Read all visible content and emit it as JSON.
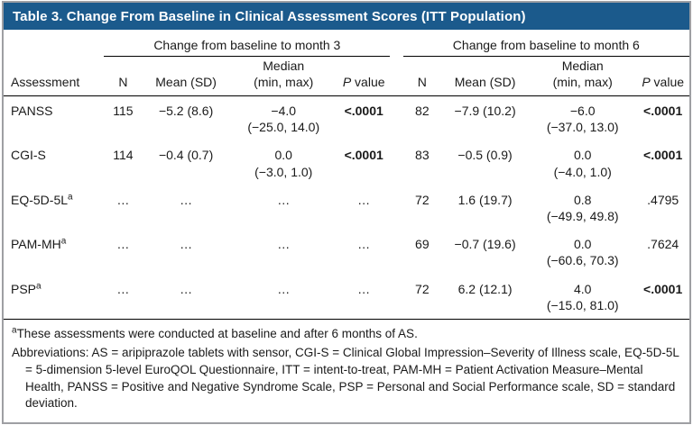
{
  "title": "Table 3. Change From Baseline in Clinical Assessment Scores (ITT Population)",
  "colors": {
    "header_bg": "#1b5a8c",
    "border_gray": "#9e9fa3",
    "rule_black": "#000000"
  },
  "table": {
    "group_headers": [
      "Change from baseline to month 3",
      "Change from baseline to month 6"
    ],
    "headers": {
      "assessment": "Assessment",
      "n": "N",
      "mean": "Mean (SD)",
      "median_line1": "Median",
      "median_line2": "(min, max)",
      "p_italic": "P",
      "p_rest": " value"
    },
    "rows": [
      {
        "assessment": "PANSS",
        "sup": "",
        "m3": {
          "n": "115",
          "mean_sd": "−5.2 (8.6)",
          "median": "−4.0",
          "minmax": "(−25.0, 14.0)",
          "p": "<.0001",
          "p_bold": true
        },
        "m6": {
          "n": "82",
          "mean_sd": "−7.9 (10.2)",
          "median": "−6.0",
          "minmax": "(−37.0, 13.0)",
          "p": "<.0001",
          "p_bold": true
        }
      },
      {
        "assessment": "CGI-S",
        "sup": "",
        "m3": {
          "n": "114",
          "mean_sd": "−0.4 (0.7)",
          "median": "0.0",
          "minmax": "(−3.0, 1.0)",
          "p": "<.0001",
          "p_bold": true
        },
        "m6": {
          "n": "83",
          "mean_sd": "−0.5 (0.9)",
          "median": "0.0",
          "minmax": "(−4.0, 1.0)",
          "p": "<.0001",
          "p_bold": true
        }
      },
      {
        "assessment": "EQ-5D-5L",
        "sup": "a",
        "m3": {
          "n": "…",
          "mean_sd": "…",
          "median": "…",
          "minmax": "",
          "p": "…",
          "p_bold": false
        },
        "m6": {
          "n": "72",
          "mean_sd": "1.6 (19.7)",
          "median": "0.8",
          "minmax": "(−49.9, 49.8)",
          "p": ".4795",
          "p_bold": false
        }
      },
      {
        "assessment": "PAM-MH",
        "sup": "a",
        "m3": {
          "n": "…",
          "mean_sd": "…",
          "median": "…",
          "minmax": "",
          "p": "…",
          "p_bold": false
        },
        "m6": {
          "n": "69",
          "mean_sd": "−0.7 (19.6)",
          "median": "0.0",
          "minmax": "(−60.6, 70.3)",
          "p": ".7624",
          "p_bold": false
        }
      },
      {
        "assessment": "PSP",
        "sup": "a",
        "m3": {
          "n": "…",
          "mean_sd": "…",
          "median": "…",
          "minmax": "",
          "p": "…",
          "p_bold": false
        },
        "m6": {
          "n": "72",
          "mean_sd": "6.2 (12.1)",
          "median": "4.0",
          "minmax": "(−15.0, 81.0)",
          "p": "<.0001",
          "p_bold": true
        }
      }
    ]
  },
  "footnotes": {
    "note1_sup": "a",
    "note1_text": "These assessments were conducted at baseline and after 6 months of AS.",
    "abbreviations": "Abbreviations: AS = aripiprazole tablets with sensor, CGI-S = Clinical Global Impression–Severity of Illness scale, EQ-5D-5L = 5-dimension 5-level EuroQOL Questionnaire, ITT = intent-to-treat, PAM-MH = Patient Activation Measure–Mental Health, PANSS = Positive and Negative Syndrome Scale, PSP = Personal and Social Performance scale, SD = standard deviation."
  }
}
